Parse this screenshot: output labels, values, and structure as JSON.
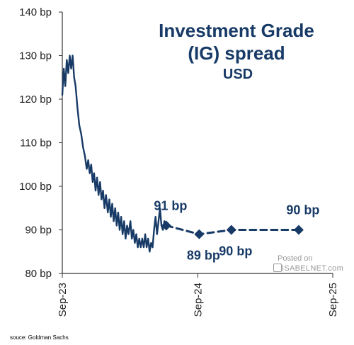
{
  "chart_data": {
    "type": "line",
    "title": "Investment Grade\n(IG) spread",
    "subtitle": "USD",
    "xlabel": "",
    "ylabel": "",
    "x_tick_labels": [
      "Sep-23",
      "Sep-24",
      "Sep-25"
    ],
    "y_tick_labels": [
      "80 bp",
      "90 bp",
      "100 bp",
      "110 bp",
      "120 bp",
      "130 bp",
      "140 bp"
    ],
    "xlim": [
      "2023-09-01",
      "2025-09-01"
    ],
    "ylim": [
      80,
      140
    ],
    "grid": false,
    "legend": "none",
    "colors": {
      "line": "#173a66",
      "text": "#173a66"
    },
    "series": [
      {
        "style": "solid",
        "points": [
          [
            "2023-09-01",
            121
          ],
          [
            "2023-09-05",
            127
          ],
          [
            "2023-09-09",
            123
          ],
          [
            "2023-09-13",
            129
          ],
          [
            "2023-09-17",
            126
          ],
          [
            "2023-09-21",
            130
          ],
          [
            "2023-09-25",
            127
          ],
          [
            "2023-09-29",
            130
          ],
          [
            "2023-10-03",
            125
          ],
          [
            "2023-10-07",
            123
          ],
          [
            "2023-10-12",
            118
          ],
          [
            "2023-10-17",
            114
          ],
          [
            "2023-10-22",
            112
          ],
          [
            "2023-10-27",
            109
          ],
          [
            "2023-11-01",
            107
          ],
          [
            "2023-11-06",
            104
          ],
          [
            "2023-11-10",
            106
          ],
          [
            "2023-11-14",
            103
          ],
          [
            "2023-11-18",
            105
          ],
          [
            "2023-11-22",
            101
          ],
          [
            "2023-11-26",
            103
          ],
          [
            "2023-11-30",
            99
          ],
          [
            "2023-12-04",
            102
          ],
          [
            "2023-12-08",
            98
          ],
          [
            "2023-12-12",
            101
          ],
          [
            "2023-12-16",
            97
          ],
          [
            "2023-12-20",
            99
          ],
          [
            "2023-12-24",
            95
          ],
          [
            "2023-12-28",
            98
          ],
          [
            "2024-01-02",
            94
          ],
          [
            "2024-01-06",
            97
          ],
          [
            "2024-01-10",
            93
          ],
          [
            "2024-01-14",
            96
          ],
          [
            "2024-01-18",
            92
          ],
          [
            "2024-01-22",
            95
          ],
          [
            "2024-01-26",
            91
          ],
          [
            "2024-01-30",
            94
          ],
          [
            "2024-02-03",
            90
          ],
          [
            "2024-02-07",
            93
          ],
          [
            "2024-02-11",
            89
          ],
          [
            "2024-02-15",
            92
          ],
          [
            "2024-02-19",
            88
          ],
          [
            "2024-02-23",
            91
          ],
          [
            "2024-02-27",
            89
          ],
          [
            "2024-03-03",
            92
          ],
          [
            "2024-03-07",
            88
          ],
          [
            "2024-03-11",
            90
          ],
          [
            "2024-03-15",
            87
          ],
          [
            "2024-03-19",
            89
          ],
          [
            "2024-03-23",
            86
          ],
          [
            "2024-03-27",
            88
          ],
          [
            "2024-03-31",
            86
          ],
          [
            "2024-04-04",
            88
          ],
          [
            "2024-04-08",
            86
          ],
          [
            "2024-04-12",
            89
          ],
          [
            "2024-04-16",
            86
          ],
          [
            "2024-04-20",
            88
          ],
          [
            "2024-04-24",
            85
          ],
          [
            "2024-04-28",
            87
          ],
          [
            "2024-05-02",
            86
          ],
          [
            "2024-05-06",
            90
          ],
          [
            "2024-05-10",
            93
          ],
          [
            "2024-05-14",
            89
          ],
          [
            "2024-05-18",
            92
          ],
          [
            "2024-05-22",
            95
          ],
          [
            "2024-05-26",
            91
          ],
          [
            "2024-05-30",
            90
          ],
          [
            "2024-06-03",
            92
          ],
          [
            "2024-06-08",
            91
          ]
        ]
      },
      {
        "style": "dashed",
        "points": [
          [
            "2024-06-08",
            91
          ],
          [
            "2024-09-05",
            89
          ],
          [
            "2024-12-01",
            90
          ],
          [
            "2025-06-01",
            90
          ]
        ]
      }
    ],
    "annotations": [
      {
        "x": "2024-06-08",
        "y": 91,
        "label": "91 bp",
        "pos": "above"
      },
      {
        "x": "2024-09-05",
        "y": 89,
        "label": "89 bp",
        "pos": "below"
      },
      {
        "x": "2024-12-01",
        "y": 90,
        "label": "90 bp",
        "pos": "below"
      },
      {
        "x": "2025-06-01",
        "y": 90,
        "label": "90 bp",
        "pos": "above"
      }
    ],
    "source": "souce: Goldman Sachs"
  },
  "watermark": {
    "posted": "Posted on",
    "brand": "ISABELNET.com"
  }
}
